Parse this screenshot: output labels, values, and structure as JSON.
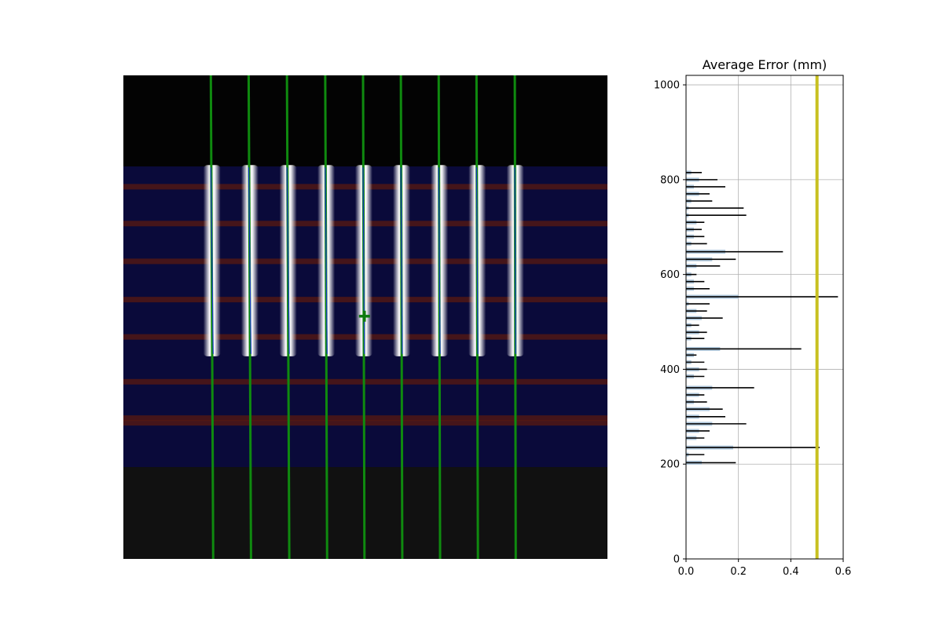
{
  "chart_data": [
    {
      "type": "image",
      "description_free": true,
      "image_size": [
        1024,
        1024
      ],
      "strip_region_y": [
        195,
        590
      ],
      "vertical_lines": [
        {
          "x_top": 185,
          "x_bottom": 190
        },
        {
          "x_top": 265,
          "x_bottom": 270
        },
        {
          "x_top": 346,
          "x_bottom": 351
        },
        {
          "x_top": 427,
          "x_bottom": 431
        },
        {
          "x_top": 507,
          "x_bottom": 510
        },
        {
          "x_top": 587,
          "x_bottom": 590
        },
        {
          "x_top": 667,
          "x_bottom": 670
        },
        {
          "x_top": 747,
          "x_bottom": 750
        },
        {
          "x_top": 828,
          "x_bottom": 830
        }
      ],
      "center_marker": {
        "x": 510,
        "y": 510
      },
      "error_rows_y": [
        235,
        313,
        393,
        474,
        553,
        648,
        725,
        735
      ]
    },
    {
      "type": "bar",
      "orientation": "horizontal",
      "title": "Average Error (mm)",
      "xlim": [
        0,
        0.6
      ],
      "ylim": [
        0,
        1020
      ],
      "xticks": [
        "0.0",
        "0.2",
        "0.4",
        "0.6"
      ],
      "xtick_values": [
        0.0,
        0.2,
        0.4,
        0.6
      ],
      "yticks": [
        "0",
        "200",
        "400",
        "600",
        "800",
        "1000"
      ],
      "ytick_values": [
        0,
        200,
        400,
        600,
        800,
        1000
      ],
      "grid": true,
      "threshold_line": {
        "x": 0.5,
        "color": "#c8c020"
      },
      "bar_color": "#b0c8dc",
      "error_color": "#000000",
      "series": [
        {
          "bars": [
            {
              "y": 815,
              "value": 0.02,
              "error": 0.04
            },
            {
              "y": 800,
              "value": 0.05,
              "error": 0.07
            },
            {
              "y": 785,
              "value": 0.03,
              "error": 0.12
            },
            {
              "y": 770,
              "value": 0.05,
              "error": 0.04
            },
            {
              "y": 755,
              "value": 0.02,
              "error": 0.08
            },
            {
              "y": 740,
              "value": 0.01,
              "error": 0.21
            },
            {
              "y": 725,
              "value": 0.01,
              "error": 0.22
            },
            {
              "y": 710,
              "value": 0.04,
              "error": 0.03
            },
            {
              "y": 695,
              "value": 0.03,
              "error": 0.03
            },
            {
              "y": 680,
              "value": 0.03,
              "error": 0.04
            },
            {
              "y": 665,
              "value": 0.02,
              "error": 0.06
            },
            {
              "y": 648,
              "value": 0.15,
              "error": 0.22
            },
            {
              "y": 632,
              "value": 0.1,
              "error": 0.09
            },
            {
              "y": 618,
              "value": 0.04,
              "error": 0.09
            },
            {
              "y": 600,
              "value": 0.02,
              "error": 0.02
            },
            {
              "y": 585,
              "value": 0.03,
              "error": 0.04
            },
            {
              "y": 570,
              "value": 0.03,
              "error": 0.06
            },
            {
              "y": 553,
              "value": 0.2,
              "error": 0.38
            },
            {
              "y": 538,
              "value": 0.01,
              "error": 0.08
            },
            {
              "y": 523,
              "value": 0.04,
              "error": 0.04
            },
            {
              "y": 508,
              "value": 0.06,
              "error": 0.08
            },
            {
              "y": 493,
              "value": 0.02,
              "error": 0.03
            },
            {
              "y": 478,
              "value": 0.05,
              "error": 0.03
            },
            {
              "y": 465,
              "value": 0.02,
              "error": 0.05
            },
            {
              "y": 443,
              "value": 0.13,
              "error": 0.31
            },
            {
              "y": 430,
              "value": 0.03,
              "error": 0.01
            },
            {
              "y": 415,
              "value": 0.02,
              "error": 0.05
            },
            {
              "y": 400,
              "value": 0.05,
              "error": 0.03
            },
            {
              "y": 385,
              "value": 0.03,
              "error": 0.04
            },
            {
              "y": 361,
              "value": 0.1,
              "error": 0.16
            },
            {
              "y": 346,
              "value": 0.05,
              "error": 0.02
            },
            {
              "y": 331,
              "value": 0.03,
              "error": 0.05
            },
            {
              "y": 316,
              "value": 0.09,
              "error": 0.05
            },
            {
              "y": 300,
              "value": 0.05,
              "error": 0.1
            },
            {
              "y": 285,
              "value": 0.1,
              "error": 0.13
            },
            {
              "y": 270,
              "value": 0.05,
              "error": 0.04
            },
            {
              "y": 255,
              "value": 0.04,
              "error": 0.03
            },
            {
              "y": 235,
              "value": 0.18,
              "error": 0.33
            },
            {
              "y": 220,
              "value": 0.01,
              "error": 0.06
            },
            {
              "y": 203,
              "value": 0.06,
              "error": 0.13
            }
          ]
        }
      ]
    }
  ]
}
